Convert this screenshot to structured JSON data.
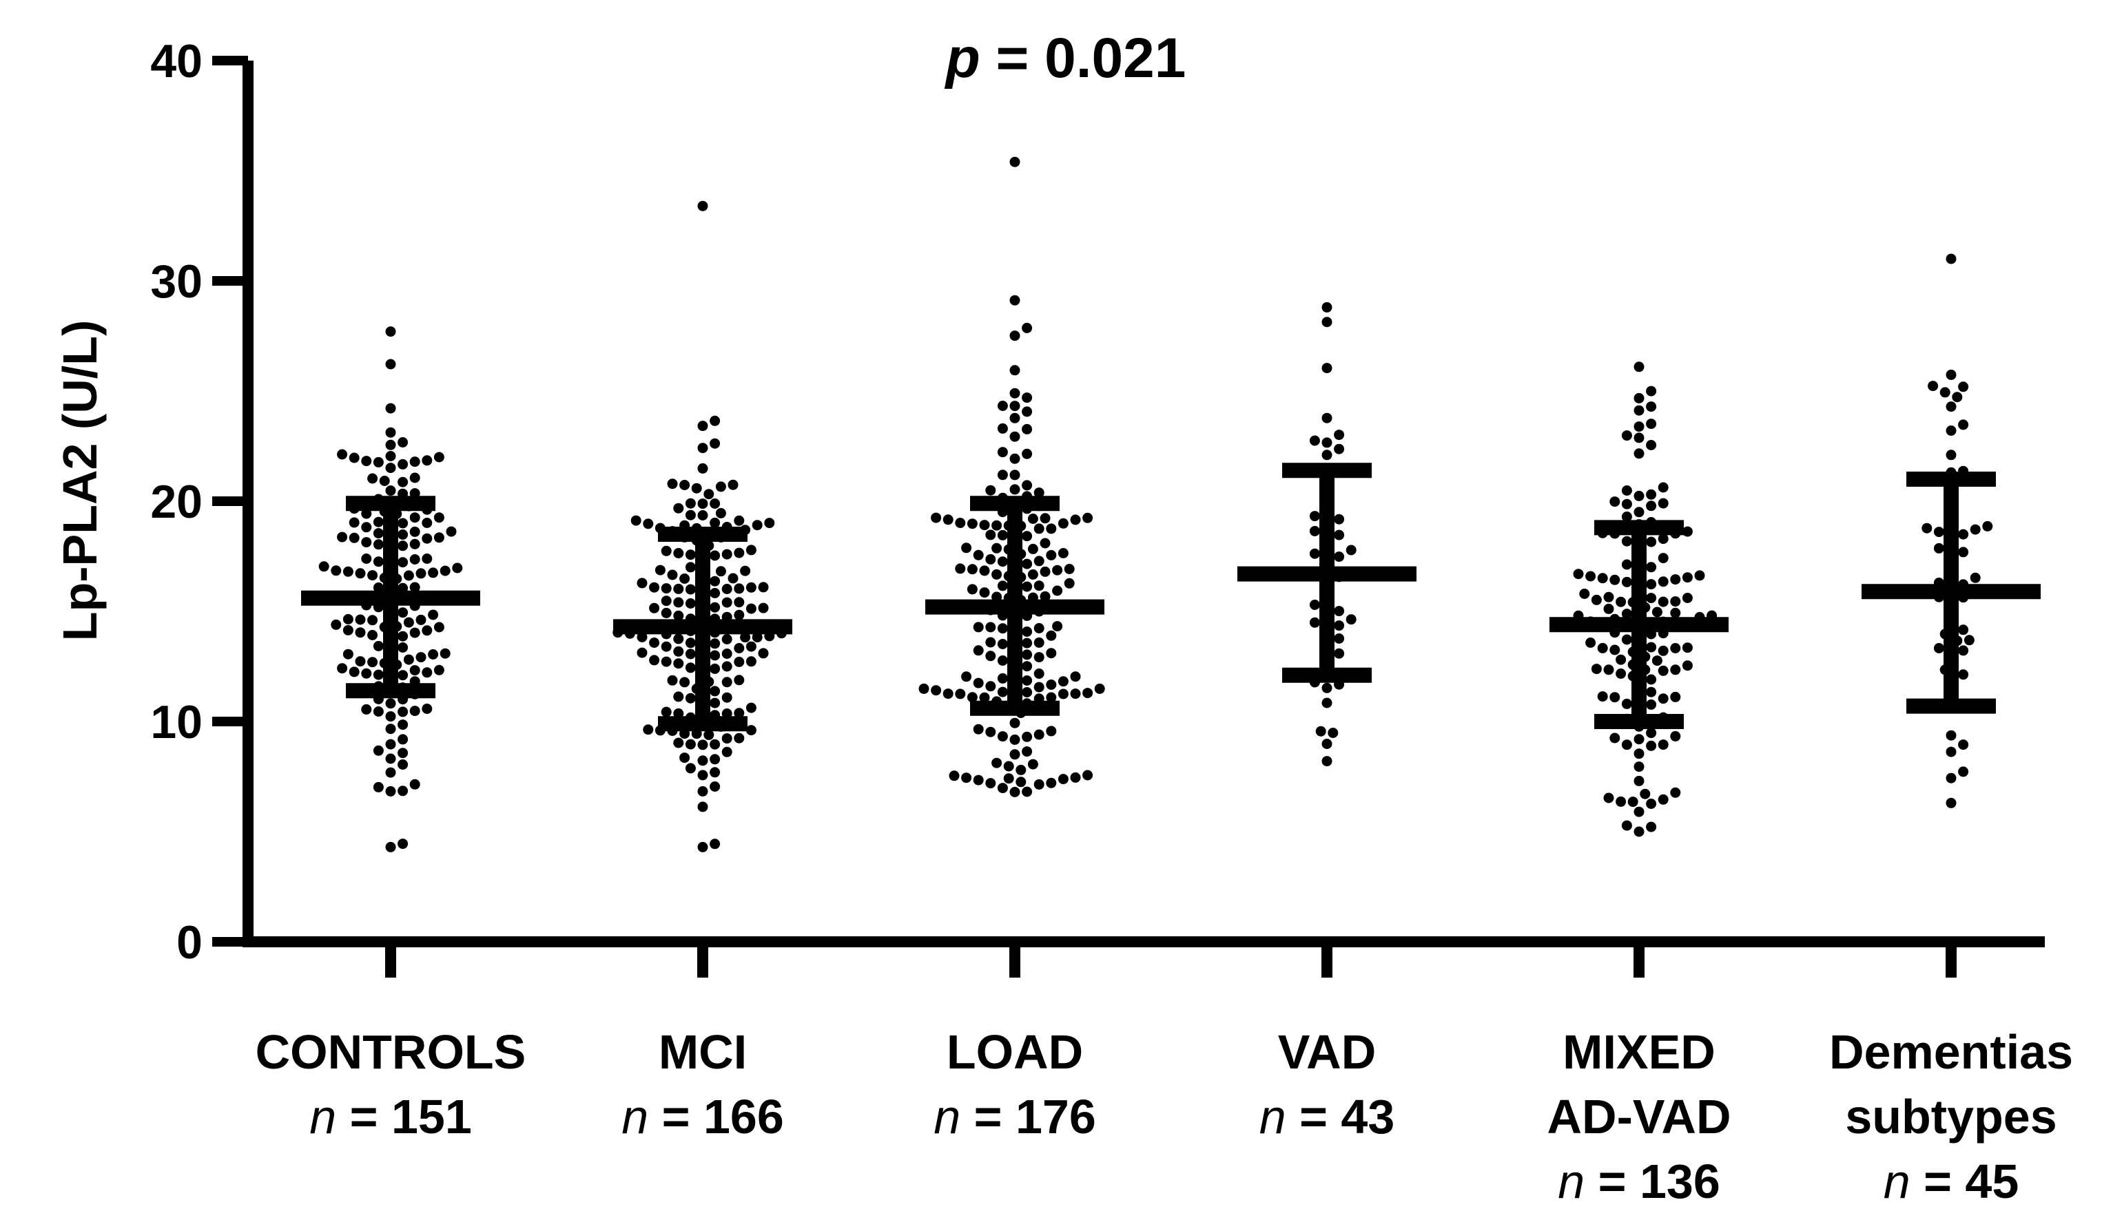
{
  "chart_data": {
    "type": "scatter",
    "title_prefix": "p",
    "title_value": "= 0.021",
    "ylabel": "Lp-PLA2 (U/L)",
    "ylim": [
      0,
      40
    ],
    "yticks": [
      "0",
      "10",
      "20",
      "30",
      "40"
    ],
    "n_prefix": "n",
    "groups": [
      {
        "name_lines": [
          "CONTROLS"
        ],
        "n_text": "= 151",
        "n": 151,
        "mean": 15.6,
        "sd_low": 11.4,
        "sd_high": 19.9,
        "min": 4.3,
        "max": 27.7
      },
      {
        "name_lines": [
          "MCI"
        ],
        "n_text": "= 166",
        "n": 166,
        "mean": 14.3,
        "sd_low": 9.9,
        "sd_high": 18.5,
        "min": 4.3,
        "max": 33.4
      },
      {
        "name_lines": [
          "LOAD"
        ],
        "n_text": "= 176",
        "n": 176,
        "mean": 15.2,
        "sd_low": 10.6,
        "sd_high": 19.9,
        "min": 6.8,
        "max": 35.4
      },
      {
        "name_lines": [
          "VAD"
        ],
        "n_text": "= 43",
        "n": 43,
        "mean": 16.7,
        "sd_low": 12.1,
        "sd_high": 21.4,
        "min": 8.2,
        "max": 28.8
      },
      {
        "name_lines": [
          "MIXED",
          "AD-VAD"
        ],
        "n_text": "= 136",
        "n": 136,
        "mean": 14.4,
        "sd_low": 10.0,
        "sd_high": 18.8,
        "min": 5.0,
        "max": 26.1
      },
      {
        "name_lines": [
          "Dementias",
          "subtypes"
        ],
        "n_text": "= 45",
        "n": 45,
        "mean": 15.9,
        "sd_low": 10.7,
        "sd_high": 21.0,
        "min": 6.3,
        "max": 31.0
      }
    ]
  }
}
